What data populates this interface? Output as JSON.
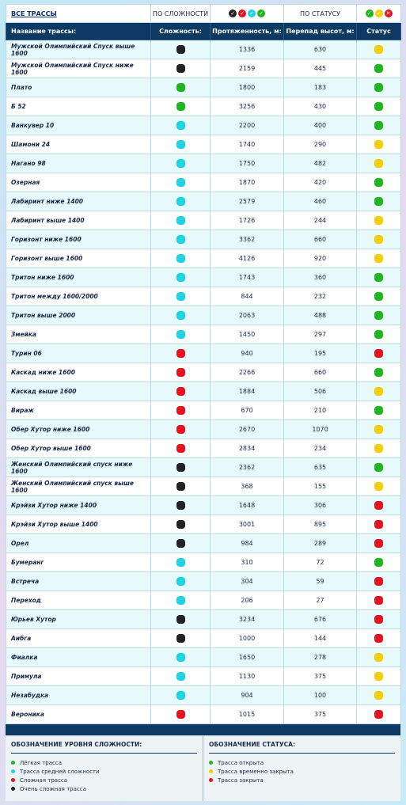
{
  "filters": {
    "all": "ВСЕ ТРАССЫ",
    "by_difficulty": "ПО СЛОЖНОСТИ",
    "by_status": "ПО СТАТУСУ"
  },
  "table": {
    "columns": [
      "Название трассы:",
      "Сложность:",
      "Протяженность, м:",
      "Перепад высот, м:",
      "Статус"
    ],
    "rows": [
      {
        "name": "Мужской Олимпийский Спуск выше 1600",
        "difficulty": "#222222",
        "length": 1336,
        "drop": 630,
        "status": "#f5d000"
      },
      {
        "name": "Мужской Олимпийский Спуск ниже 1600",
        "difficulty": "#222222",
        "length": 2159,
        "drop": 445,
        "status": "#1fb51f"
      },
      {
        "name": "Плато",
        "difficulty": "#1fb51f",
        "length": 1800,
        "drop": 183,
        "status": "#1fb51f"
      },
      {
        "name": "Б 52",
        "difficulty": "#1fb51f",
        "length": 3256,
        "drop": 430,
        "status": "#1fb51f"
      },
      {
        "name": "Ванкувер 10",
        "difficulty": "#1fd3e0",
        "length": 2200,
        "drop": 400,
        "status": "#1fb51f"
      },
      {
        "name": "Шамони 24",
        "difficulty": "#1fd3e0",
        "length": 1740,
        "drop": 290,
        "status": "#f5d000"
      },
      {
        "name": "Нагано 98",
        "difficulty": "#1fd3e0",
        "length": 1750,
        "drop": 482,
        "status": "#f5d000"
      },
      {
        "name": "Озерная",
        "difficulty": "#1fd3e0",
        "length": 1870,
        "drop": 420,
        "status": "#1fb51f"
      },
      {
        "name": "Лабиринт ниже 1400",
        "difficulty": "#1fd3e0",
        "length": 2579,
        "drop": 460,
        "status": "#1fb51f"
      },
      {
        "name": "Лабиринт выше 1400",
        "difficulty": "#1fd3e0",
        "length": 1726,
        "drop": 244,
        "status": "#f5d000"
      },
      {
        "name": "Горизонт ниже 1600",
        "difficulty": "#1fd3e0",
        "length": 3362,
        "drop": 660,
        "status": "#f5d000"
      },
      {
        "name": "Горизонт выше 1600",
        "difficulty": "#1fd3e0",
        "length": 4126,
        "drop": 920,
        "status": "#f5d000"
      },
      {
        "name": "Тритон ниже 1600",
        "difficulty": "#1fd3e0",
        "length": 1743,
        "drop": 360,
        "status": "#1fb51f"
      },
      {
        "name": "Тритон между 1600/2000",
        "difficulty": "#1fd3e0",
        "length": 844,
        "drop": 232,
        "status": "#1fb51f"
      },
      {
        "name": "Тритон выше 2000",
        "difficulty": "#1fd3e0",
        "length": 2063,
        "drop": 488,
        "status": "#1fb51f"
      },
      {
        "name": "Змейка",
        "difficulty": "#1fd3e0",
        "length": 1450,
        "drop": 297,
        "status": "#1fb51f"
      },
      {
        "name": "Турин 06",
        "difficulty": "#e8121e",
        "length": 940,
        "drop": 195,
        "status": "#e8121e"
      },
      {
        "name": "Каскад ниже 1600",
        "difficulty": "#e8121e",
        "length": 2266,
        "drop": 660,
        "status": "#1fb51f"
      },
      {
        "name": "Каскад выше 1600",
        "difficulty": "#e8121e",
        "length": 1884,
        "drop": 506,
        "status": "#f5d000"
      },
      {
        "name": "Вираж",
        "difficulty": "#e8121e",
        "length": 670,
        "drop": 210,
        "status": "#1fb51f"
      },
      {
        "name": "Обер Хутор ниже 1600",
        "difficulty": "#e8121e",
        "length": 2670,
        "drop": 1070,
        "status": "#f5d000"
      },
      {
        "name": "Обер Хутор выше 1600",
        "difficulty": "#e8121e",
        "length": 2834,
        "drop": 234,
        "status": "#f5d000"
      },
      {
        "name": "Женский Олимпийский спуск ниже 1600",
        "difficulty": "#222222",
        "length": 2362,
        "drop": 635,
        "status": "#1fb51f"
      },
      {
        "name": "Женский Олимпийский спуск выше 1600",
        "difficulty": "#222222",
        "length": 368,
        "drop": 155,
        "status": "#f5d000"
      },
      {
        "name": "Крэйзи Хутор ниже 1400",
        "difficulty": "#222222",
        "length": 1648,
        "drop": 306,
        "status": "#e8121e"
      },
      {
        "name": "Крэйзи Хутор выше 1400",
        "difficulty": "#222222",
        "length": 3001,
        "drop": 895,
        "status": "#e8121e"
      },
      {
        "name": "Орел",
        "difficulty": "#222222",
        "length": 984,
        "drop": 289,
        "status": "#e8121e"
      },
      {
        "name": "Бумеранг",
        "difficulty": "#1fd3e0",
        "length": 310,
        "drop": 72,
        "status": "#1fb51f"
      },
      {
        "name": "Встреча",
        "difficulty": "#1fd3e0",
        "length": 304,
        "drop": 59,
        "status": "#e8121e"
      },
      {
        "name": "Переход",
        "difficulty": "#1fd3e0",
        "length": 206,
        "drop": 27,
        "status": "#e8121e"
      },
      {
        "name": "Юрьев Хутор",
        "difficulty": "#222222",
        "length": 3234,
        "drop": 676,
        "status": "#e8121e"
      },
      {
        "name": "Аибга",
        "difficulty": "#222222",
        "length": 1000,
        "drop": 144,
        "status": "#e8121e"
      },
      {
        "name": "Фиалка",
        "difficulty": "#1fd3e0",
        "length": 1650,
        "drop": 278,
        "status": "#f5d000"
      },
      {
        "name": "Примула",
        "difficulty": "#1fd3e0",
        "length": 1130,
        "drop": 375,
        "status": "#f5d000"
      },
      {
        "name": "Незабудка",
        "difficulty": "#1fd3e0",
        "length": 904,
        "drop": 100,
        "status": "#f5d000"
      },
      {
        "name": "Вероника",
        "difficulty": "#e8121e",
        "length": 1015,
        "drop": 375,
        "status": "#e8121e"
      }
    ]
  },
  "legend": {
    "difficulty": {
      "title": "ОБОЗНАЧЕНИЕ УРОВНЯ СЛОЖНОСТИ:",
      "items": [
        {
          "label": "Лёгкая трасса",
          "color": "#1fb51f"
        },
        {
          "label": "Трасса средней сложности",
          "color": "#1fd3e0"
        },
        {
          "label": "Сложная трасса",
          "color": "#e8121e"
        },
        {
          "label": "Очень сложная трасса",
          "color": "#222222"
        }
      ]
    },
    "status": {
      "title": "ОБОЗНАЧЕНИЕ СТАТУСА:",
      "items": [
        {
          "label": "Трасса открыта",
          "color": "#1fb51f"
        },
        {
          "label": "Трасса временно закрыта",
          "color": "#f5d000"
        },
        {
          "label": "Трасса закрыта",
          "color": "#e8121e"
        }
      ]
    }
  }
}
